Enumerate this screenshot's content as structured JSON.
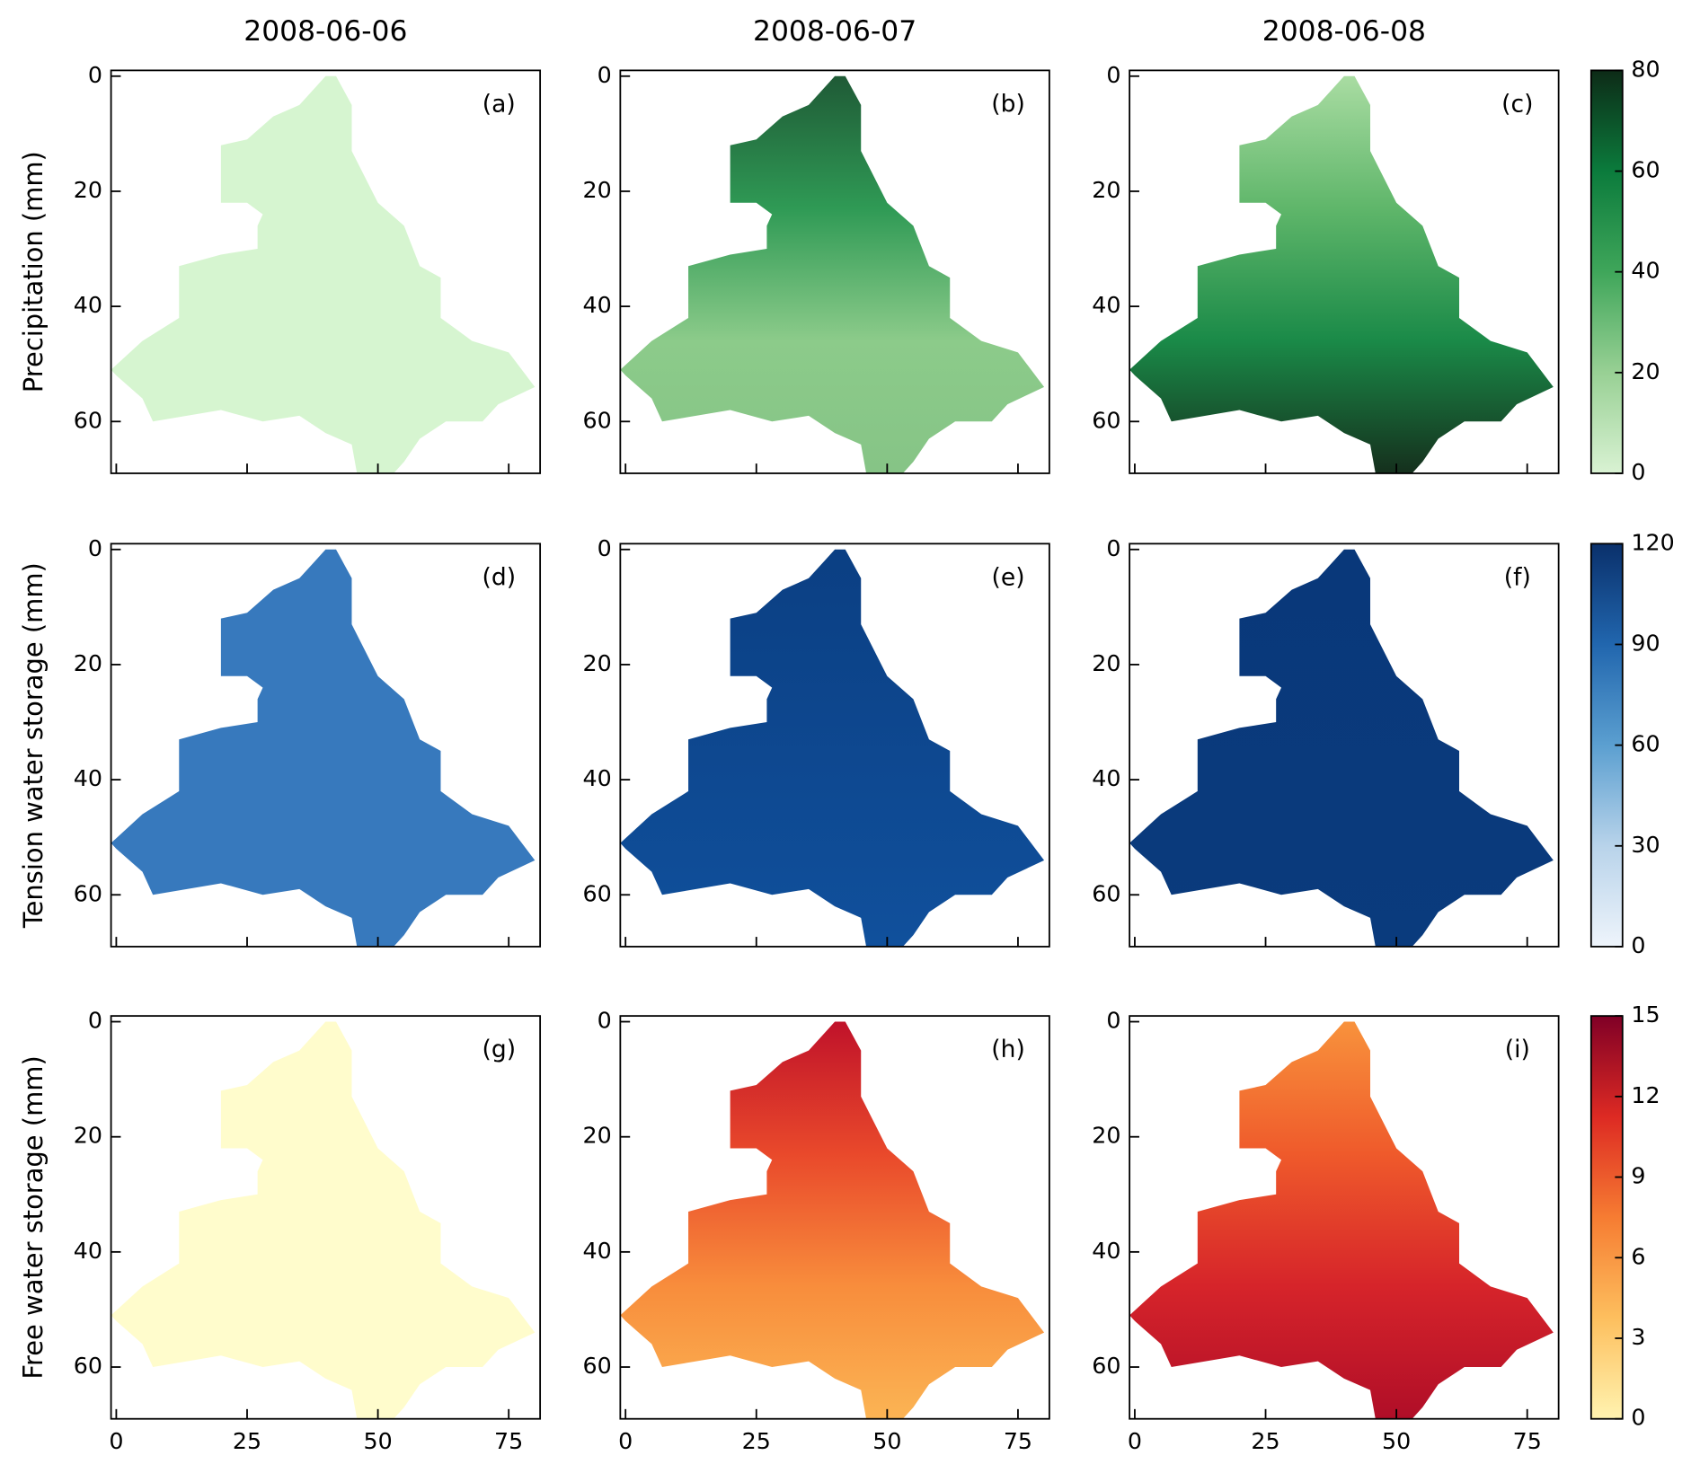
{
  "chart_data": {
    "type": "map-grid",
    "columns": [
      "2008-06-06",
      "2008-06-07",
      "2008-06-08"
    ],
    "xlim": [
      -1,
      81
    ],
    "xticks": [
      0,
      25,
      50,
      75
    ],
    "ylim": [
      -1,
      69
    ],
    "yticks": [
      0,
      20,
      40,
      60
    ],
    "rows": [
      {
        "label": "Precipitation (mm)",
        "colorbar": {
          "lim": [
            0,
            80
          ],
          "ticks": [
            0,
            20,
            40,
            60,
            80
          ],
          "colors": [
            "#d9f2d3",
            "#98d094",
            "#3fa65a",
            "#0b7b3c",
            "#0d2b17"
          ]
        },
        "panels": [
          {
            "label": "(a)",
            "colors": [
              "#d6f5d0",
              "#d6f5d0"
            ]
          },
          {
            "label": "(b)",
            "colors": [
              "#1f5a36",
              "#2f9a55",
              "#8ccb8a",
              "#86c486"
            ]
          },
          {
            "label": "(c)",
            "colors": [
              "#a9dca2",
              "#5fb66a",
              "#1a8a48",
              "#15301d"
            ]
          }
        ]
      },
      {
        "label": "Tension water storage (mm)",
        "colorbar": {
          "lim": [
            0,
            120
          ],
          "ticks": [
            0,
            30,
            60,
            90,
            120
          ],
          "colors": [
            "#eef4fb",
            "#b8d3ea",
            "#5b9fd0",
            "#2166ae",
            "#0a306b"
          ]
        },
        "panels": [
          {
            "label": "(d)",
            "colors": [
              "#3779bd",
              "#3779bd"
            ]
          },
          {
            "label": "(e)",
            "colors": [
              "#0b3f83",
              "#10509c"
            ]
          },
          {
            "label": "(f)",
            "colors": [
              "#09387a",
              "#0a3b7d"
            ]
          }
        ]
      },
      {
        "label": "Free water storage (mm)",
        "colorbar": {
          "lim": [
            0,
            15
          ],
          "ticks": [
            0,
            3,
            6,
            9,
            12,
            15
          ],
          "colors": [
            "#fff3b0",
            "#fdbf5e",
            "#f67c32",
            "#dd2a23",
            "#800026"
          ]
        },
        "panels": [
          {
            "label": "(g)",
            "colors": [
              "#fffccc",
              "#fffccc"
            ]
          },
          {
            "label": "(h)",
            "colors": [
              "#c0122a",
              "#e9492b",
              "#f88d3c",
              "#fbb454"
            ]
          },
          {
            "label": "(i)",
            "colors": [
              "#f8923c",
              "#ef5a2b",
              "#d6242a",
              "#b00e28"
            ]
          }
        ]
      }
    ]
  }
}
